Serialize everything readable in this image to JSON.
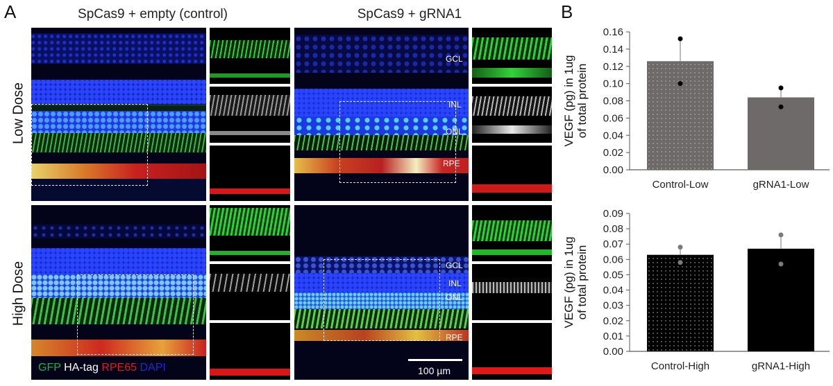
{
  "figure": {
    "panel_a_letter": "A",
    "panel_b_letter": "B",
    "columns": [
      {
        "title": "SpCas9 + empty (control)"
      },
      {
        "title": "SpCas9 + gRNA1"
      }
    ],
    "rows": [
      {
        "label": "Low Dose"
      },
      {
        "label": "High Dose"
      }
    ],
    "layer_labels": {
      "top": [
        "GCL",
        "INL",
        "ONL",
        "RPE"
      ],
      "bottom": [
        "GCL",
        "INL",
        "ONL",
        "RPE"
      ]
    },
    "legend": [
      {
        "text": "GFP",
        "color": "#1fb24a"
      },
      {
        "text": "HA-tag",
        "color": "#ffffff"
      },
      {
        "text": "RPE65",
        "color": "#e01b1b"
      },
      {
        "text": "DAPI",
        "color": "#1a2bd6"
      }
    ],
    "scale_bar": "100 µm",
    "thumb_channels": [
      "GFP",
      "HA-tag",
      "RPE65"
    ],
    "channel_colors": {
      "GFP": "#22c232",
      "HA-tag": "#d8d8d8",
      "RPE65": "#e01515",
      "DAPI": "#1b2ee0"
    }
  },
  "chart_data": [
    {
      "type": "bar",
      "title": "",
      "categories": [
        "Control-Low",
        "gRNA1-Low"
      ],
      "values": [
        0.126,
        0.084
      ],
      "points": [
        [
          0.152,
          0.1
        ],
        [
          0.095,
          0.073
        ]
      ],
      "error_bar_top": [
        0.152,
        0.095
      ],
      "ylabel": "VEGF (pg) in 1ug of total protein",
      "ylabel_lines": [
        "VEGF (pg) in 1ug",
        "of total protein"
      ],
      "xlabel": "",
      "ylim": [
        0,
        0.16
      ],
      "yticks": [
        "0.00",
        "0.02",
        "0.04",
        "0.06",
        "0.08",
        "0.10",
        "0.12",
        "0.14",
        "0.16"
      ],
      "bar_colors": [
        "#6f6a6a",
        "#6f6a6a"
      ],
      "bar_patterns": [
        "dotted",
        "solid"
      ],
      "point_color": "#000000",
      "grid": false
    },
    {
      "type": "bar",
      "title": "",
      "categories": [
        "Control-High",
        "gRNA1-High"
      ],
      "values": [
        0.063,
        0.067
      ],
      "points": [
        [
          0.068,
          0.058
        ],
        [
          0.076,
          0.057
        ]
      ],
      "error_bar_top": [
        0.068,
        0.076
      ],
      "ylabel": "VEGF (pg) in 1ug of total protein",
      "ylabel_lines": [
        "VEGF (pg) in 1ug",
        "of total protein"
      ],
      "xlabel": "",
      "ylim": [
        0,
        0.09
      ],
      "yticks": [
        "0.00",
        "0.01",
        "0.02",
        "0.03",
        "0.04",
        "0.05",
        "0.06",
        "0.07",
        "0.08",
        "0.09"
      ],
      "bar_colors": [
        "#000000",
        "#000000"
      ],
      "bar_patterns": [
        "dotted",
        "solid"
      ],
      "point_color": "#7a7a7a",
      "grid": false
    }
  ]
}
